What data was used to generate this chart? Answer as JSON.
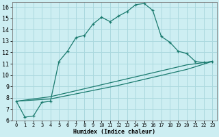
{
  "xlabel": "Humidex (Indice chaleur)",
  "bg_color": "#cdeef2",
  "grid_color": "#aad8de",
  "line_color": "#1a7a6e",
  "xlim": [
    -0.5,
    23.5
  ],
  "ylim": [
    6,
    16.4
  ],
  "yticks": [
    6,
    7,
    8,
    9,
    10,
    11,
    12,
    13,
    14,
    15,
    16
  ],
  "xticks": [
    0,
    1,
    2,
    3,
    4,
    5,
    6,
    7,
    8,
    9,
    10,
    11,
    12,
    13,
    14,
    15,
    16,
    17,
    18,
    19,
    20,
    21,
    22,
    23
  ],
  "series1_x": [
    0,
    1,
    2,
    3,
    4,
    5,
    6,
    7,
    8,
    9,
    10,
    11,
    12,
    13,
    14,
    15,
    16,
    17,
    18,
    19,
    20,
    21,
    22,
    23
  ],
  "series1_y": [
    7.7,
    6.3,
    6.4,
    7.6,
    7.7,
    11.2,
    12.1,
    13.3,
    13.5,
    14.5,
    15.1,
    14.7,
    15.2,
    15.6,
    16.2,
    16.3,
    15.7,
    13.4,
    12.9,
    12.1,
    11.9,
    11.2,
    11.1,
    11.2
  ],
  "series2_x": [
    0,
    23
  ],
  "series2_y": [
    7.7,
    11.2
  ],
  "series3_x": [
    0,
    23
  ],
  "series3_y": [
    7.7,
    11.2
  ],
  "series2_waypoints_x": [
    0,
    4,
    8,
    12,
    16,
    20,
    23
  ],
  "series2_waypoints_y": [
    7.7,
    7.9,
    8.5,
    9.1,
    9.8,
    10.5,
    11.2
  ],
  "series3_waypoints_x": [
    0,
    4,
    8,
    12,
    16,
    20,
    23
  ],
  "series3_waypoints_y": [
    7.7,
    8.1,
    8.8,
    9.5,
    10.2,
    10.9,
    11.2
  ]
}
